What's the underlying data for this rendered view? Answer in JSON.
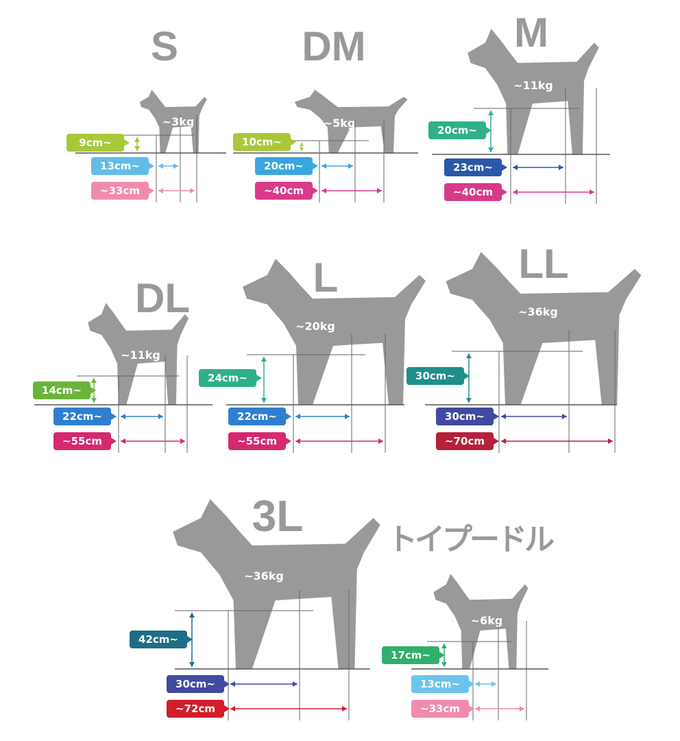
{
  "panels": [
    {
      "size": "S",
      "weight": "~3kg",
      "height": "9cm~",
      "chest": "13cm~",
      "length": "~33cm",
      "colors": {
        "height": "#a8c83a",
        "chest": "#63bce8",
        "length": "#f08bb0"
      }
    },
    {
      "size": "DM",
      "weight": "~5kg",
      "height": "10cm~",
      "chest": "20cm~",
      "length": "~40cm",
      "colors": {
        "height": "#a8c83a",
        "chest": "#3aa6de",
        "length": "#d93a8a"
      }
    },
    {
      "size": "M",
      "weight": "~11kg",
      "height": "20cm~",
      "chest": "23cm~",
      "length": "~40cm",
      "colors": {
        "height": "#2fb08a",
        "chest": "#2c57a8",
        "length": "#d83a8a"
      }
    },
    {
      "size": "DL",
      "weight": "~11kg",
      "height": "14cm~",
      "chest": "22cm~",
      "length": "~55cm",
      "colors": {
        "height": "#6bb43a",
        "chest": "#2f7fd0",
        "length": "#d6286e"
      }
    },
    {
      "size": "L",
      "weight": "~20kg",
      "height": "24cm~",
      "chest": "22cm~",
      "length": "~55cm",
      "colors": {
        "height": "#2fb08a",
        "chest": "#2f7fd0",
        "length": "#d6286e"
      }
    },
    {
      "size": "LL",
      "weight": "~36kg",
      "height": "30cm~",
      "chest": "30cm~",
      "length": "~70cm",
      "colors": {
        "height": "#1e8f8a",
        "chest": "#4149a0",
        "length": "#b5203a"
      }
    },
    {
      "size": "3L",
      "weight": "~36kg",
      "height": "42cm~",
      "chest": "30cm~",
      "length": "~72cm",
      "colors": {
        "height": "#1e6e86",
        "chest": "#4149a0",
        "length": "#d21d2a"
      }
    },
    {
      "size": "トイプードル",
      "weight": "~6kg",
      "height": "17cm~",
      "chest": "13cm~",
      "length": "~33cm",
      "colors": {
        "height": "#2fb06a",
        "chest": "#6cc4ec",
        "length": "#f08bb0"
      }
    }
  ],
  "silhouette_color": "#9a9898"
}
